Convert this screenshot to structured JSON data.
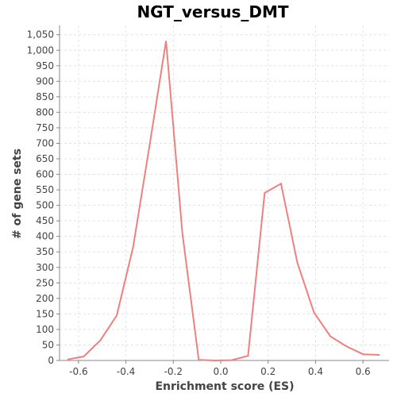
{
  "chart_data": {
    "type": "line",
    "title": "NGT_versus_DMT",
    "xlabel": "Enrichment score (ES)",
    "ylabel": "# of gene sets",
    "xlim": [
      -0.68,
      0.71
    ],
    "ylim": [
      0,
      1080
    ],
    "x_ticks": [
      "-0.6",
      "-0.4",
      "-0.2",
      "0.0",
      "0.2",
      "0.4",
      "0.6"
    ],
    "x_tick_values": [
      -0.6,
      -0.4,
      -0.2,
      0.0,
      0.2,
      0.4,
      0.6
    ],
    "y_ticks": [
      "0",
      "50",
      "100",
      "150",
      "200",
      "250",
      "300",
      "350",
      "400",
      "450",
      "500",
      "550",
      "600",
      "650",
      "700",
      "750",
      "800",
      "850",
      "900",
      "950",
      "1,000",
      "1,050"
    ],
    "y_tick_values": [
      0,
      50,
      100,
      150,
      200,
      250,
      300,
      350,
      400,
      450,
      500,
      550,
      600,
      650,
      700,
      750,
      800,
      850,
      900,
      950,
      1000,
      1050
    ],
    "grid": true,
    "series": [
      {
        "color": "#f08080",
        "x": [
          -0.647,
          -0.578,
          -0.508,
          -0.439,
          -0.37,
          -0.3,
          -0.231,
          -0.162,
          -0.093,
          -0.023,
          0.046,
          0.115,
          0.185,
          0.254,
          0.323,
          0.393,
          0.462,
          0.531,
          0.601,
          0.67
        ],
        "y": [
          3,
          13,
          65,
          145,
          365,
          695,
          1030,
          410,
          2,
          0,
          1,
          15,
          540,
          570,
          315,
          155,
          78,
          45,
          20,
          18
        ]
      }
    ]
  }
}
